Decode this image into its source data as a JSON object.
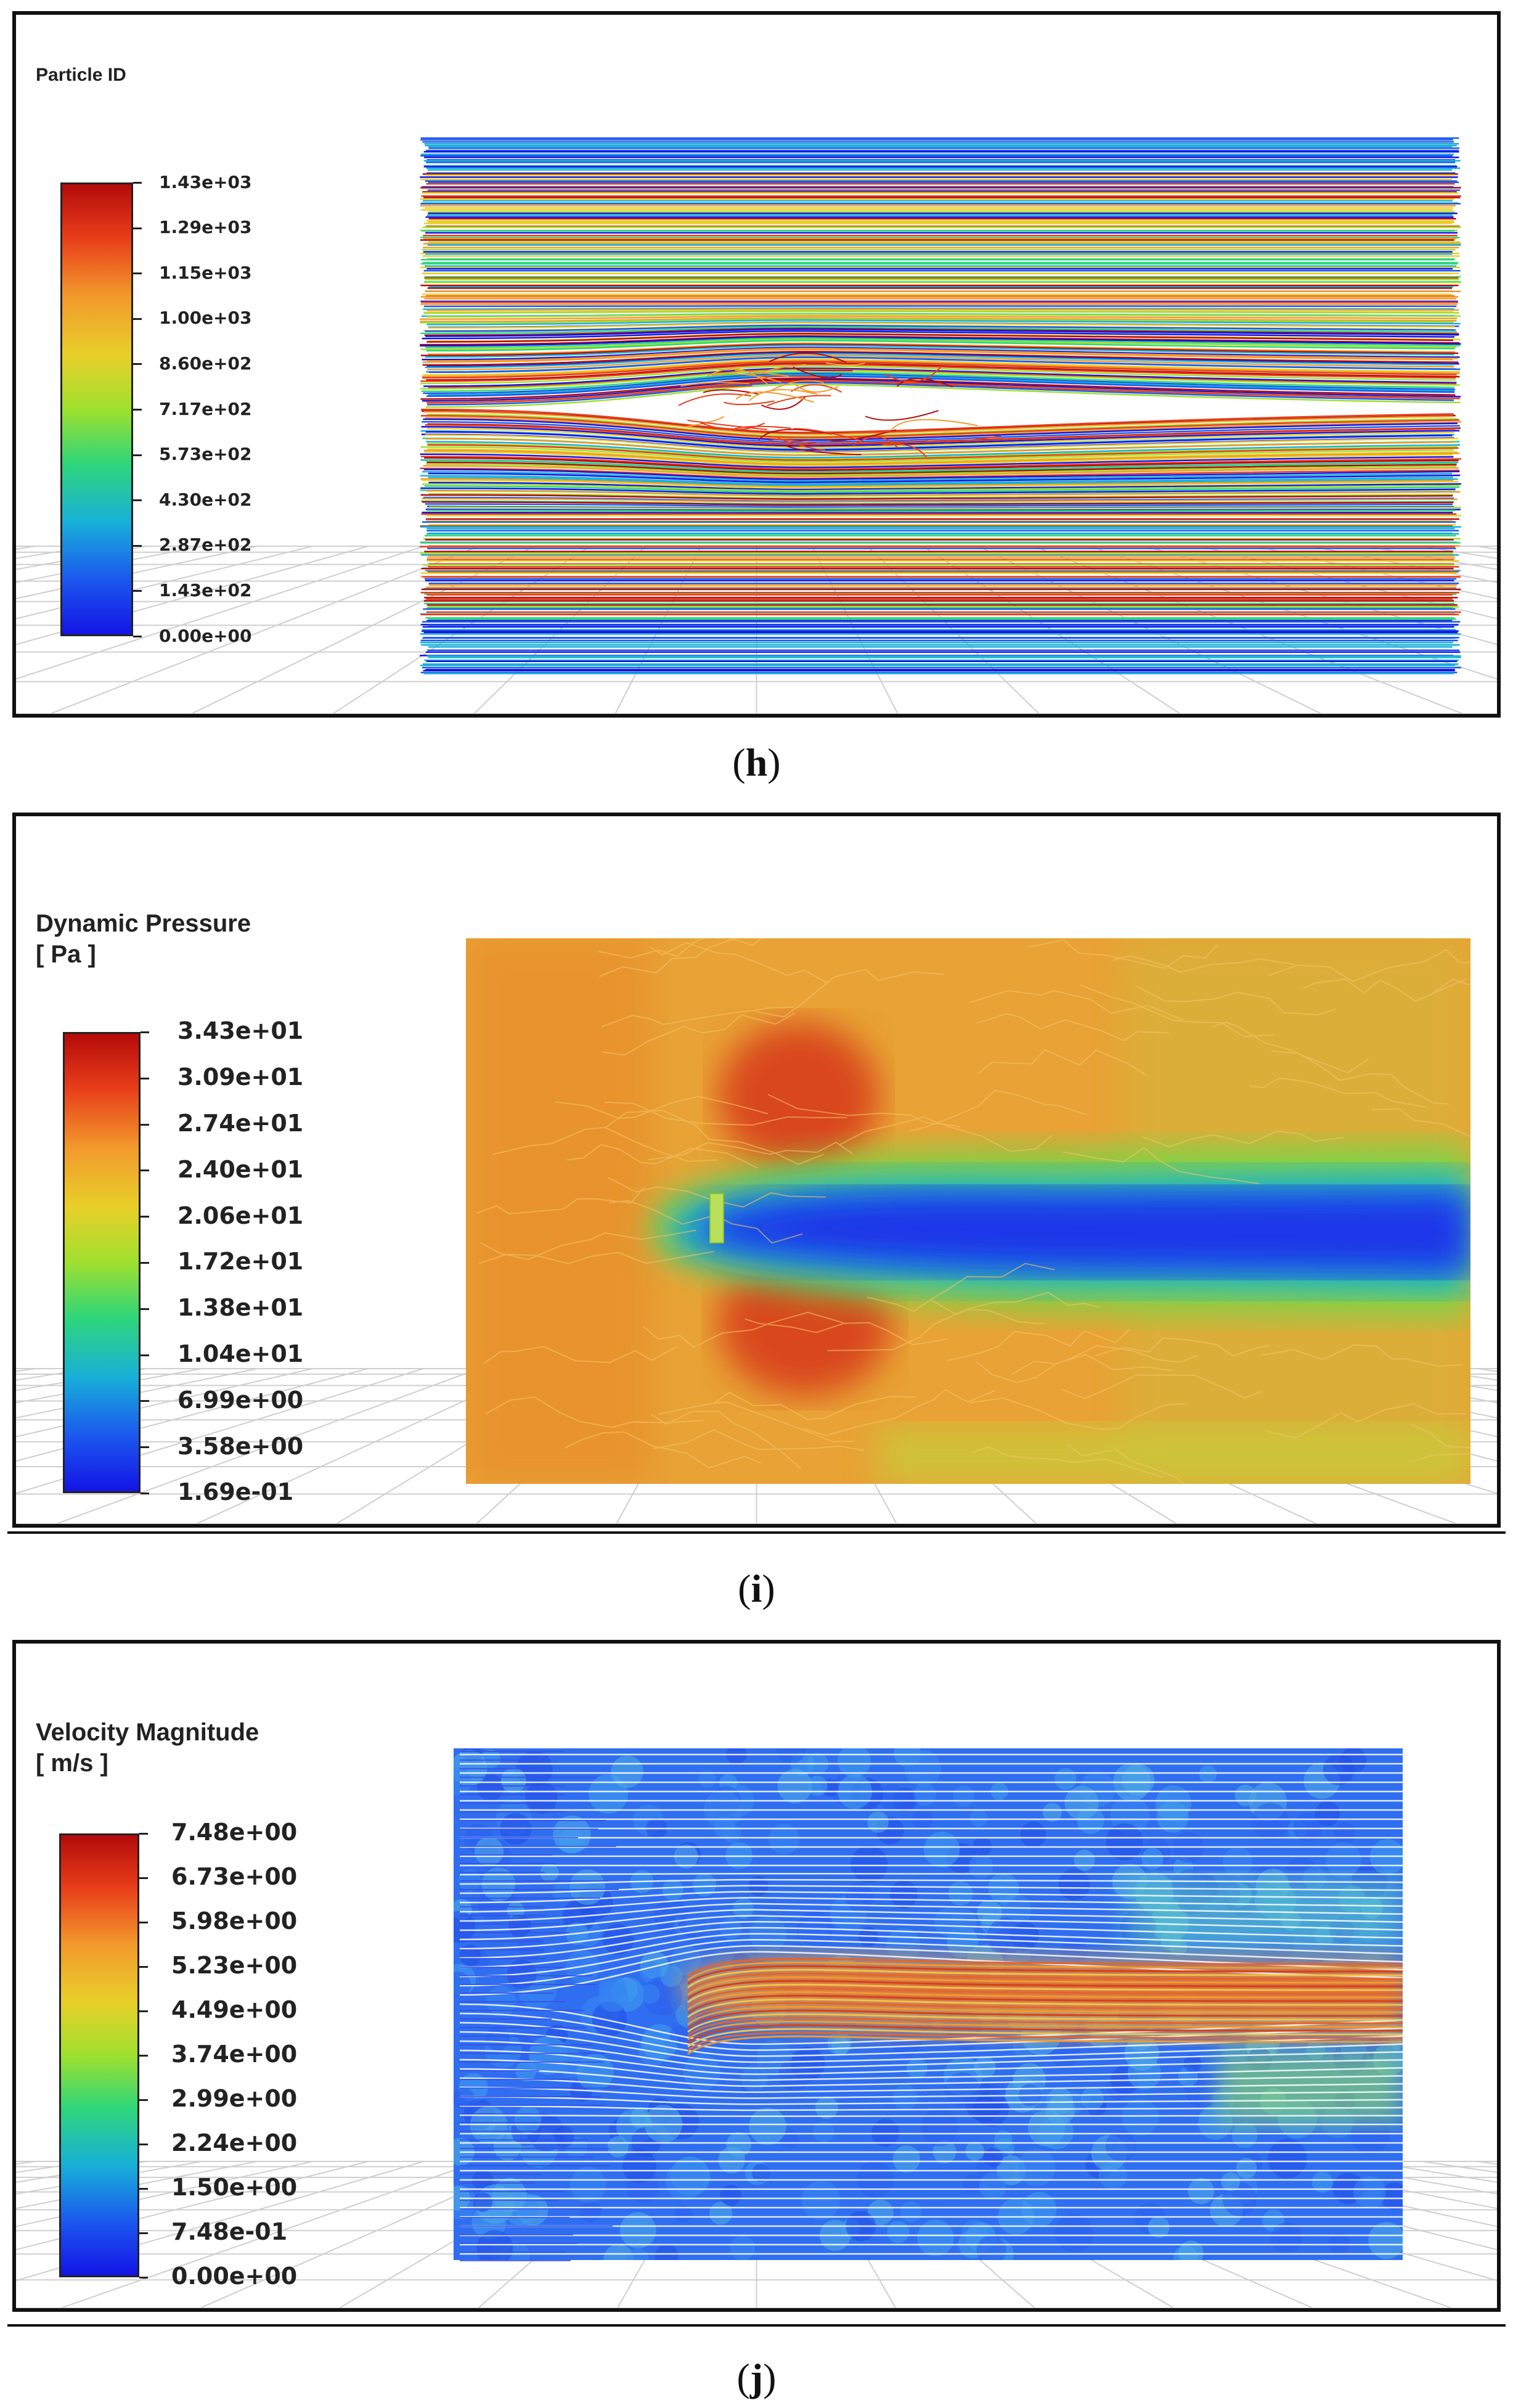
{
  "panels": [
    {
      "id": "h",
      "legend_title": "Particle ID",
      "legend_unit": "",
      "colorbar_ticks": [
        "1.43e+03",
        "1.29e+03",
        "1.15e+03",
        "1.00e+03",
        "8.60e+02",
        "7.17e+02",
        "5.73e+02",
        "4.30e+02",
        "2.87e+02",
        "1.43e+02",
        "0.00e+00"
      ],
      "caption_letter": "h"
    },
    {
      "id": "i",
      "legend_title": "Dynamic Pressure",
      "legend_unit": "[ Pa ]",
      "colorbar_ticks": [
        "3.43e+01",
        "3.09e+01",
        "2.74e+01",
        "2.40e+01",
        "2.06e+01",
        "1.72e+01",
        "1.38e+01",
        "1.04e+01",
        "6.99e+00",
        "3.58e+00",
        "1.69e-01"
      ],
      "caption_letter": "i"
    },
    {
      "id": "j",
      "legend_title": "Velocity Magnitude",
      "legend_unit": "[ m/s ]",
      "colorbar_ticks": [
        "7.48e+00",
        "6.73e+00",
        "5.98e+00",
        "5.23e+00",
        "4.49e+00",
        "3.74e+00",
        "2.99e+00",
        "2.24e+00",
        "1.50e+00",
        "7.48e-01",
        "0.00e+00"
      ],
      "caption_letter": "j"
    }
  ],
  "colors": {
    "colormap": [
      "#b40a0a",
      "#e83e1a",
      "#f29a2c",
      "#e8d02a",
      "#9fe02e",
      "#2fd67a",
      "#18b0d8",
      "#1b57ee",
      "#1414e6"
    ],
    "frame": "#111111",
    "grid": "#cfcfcf"
  }
}
